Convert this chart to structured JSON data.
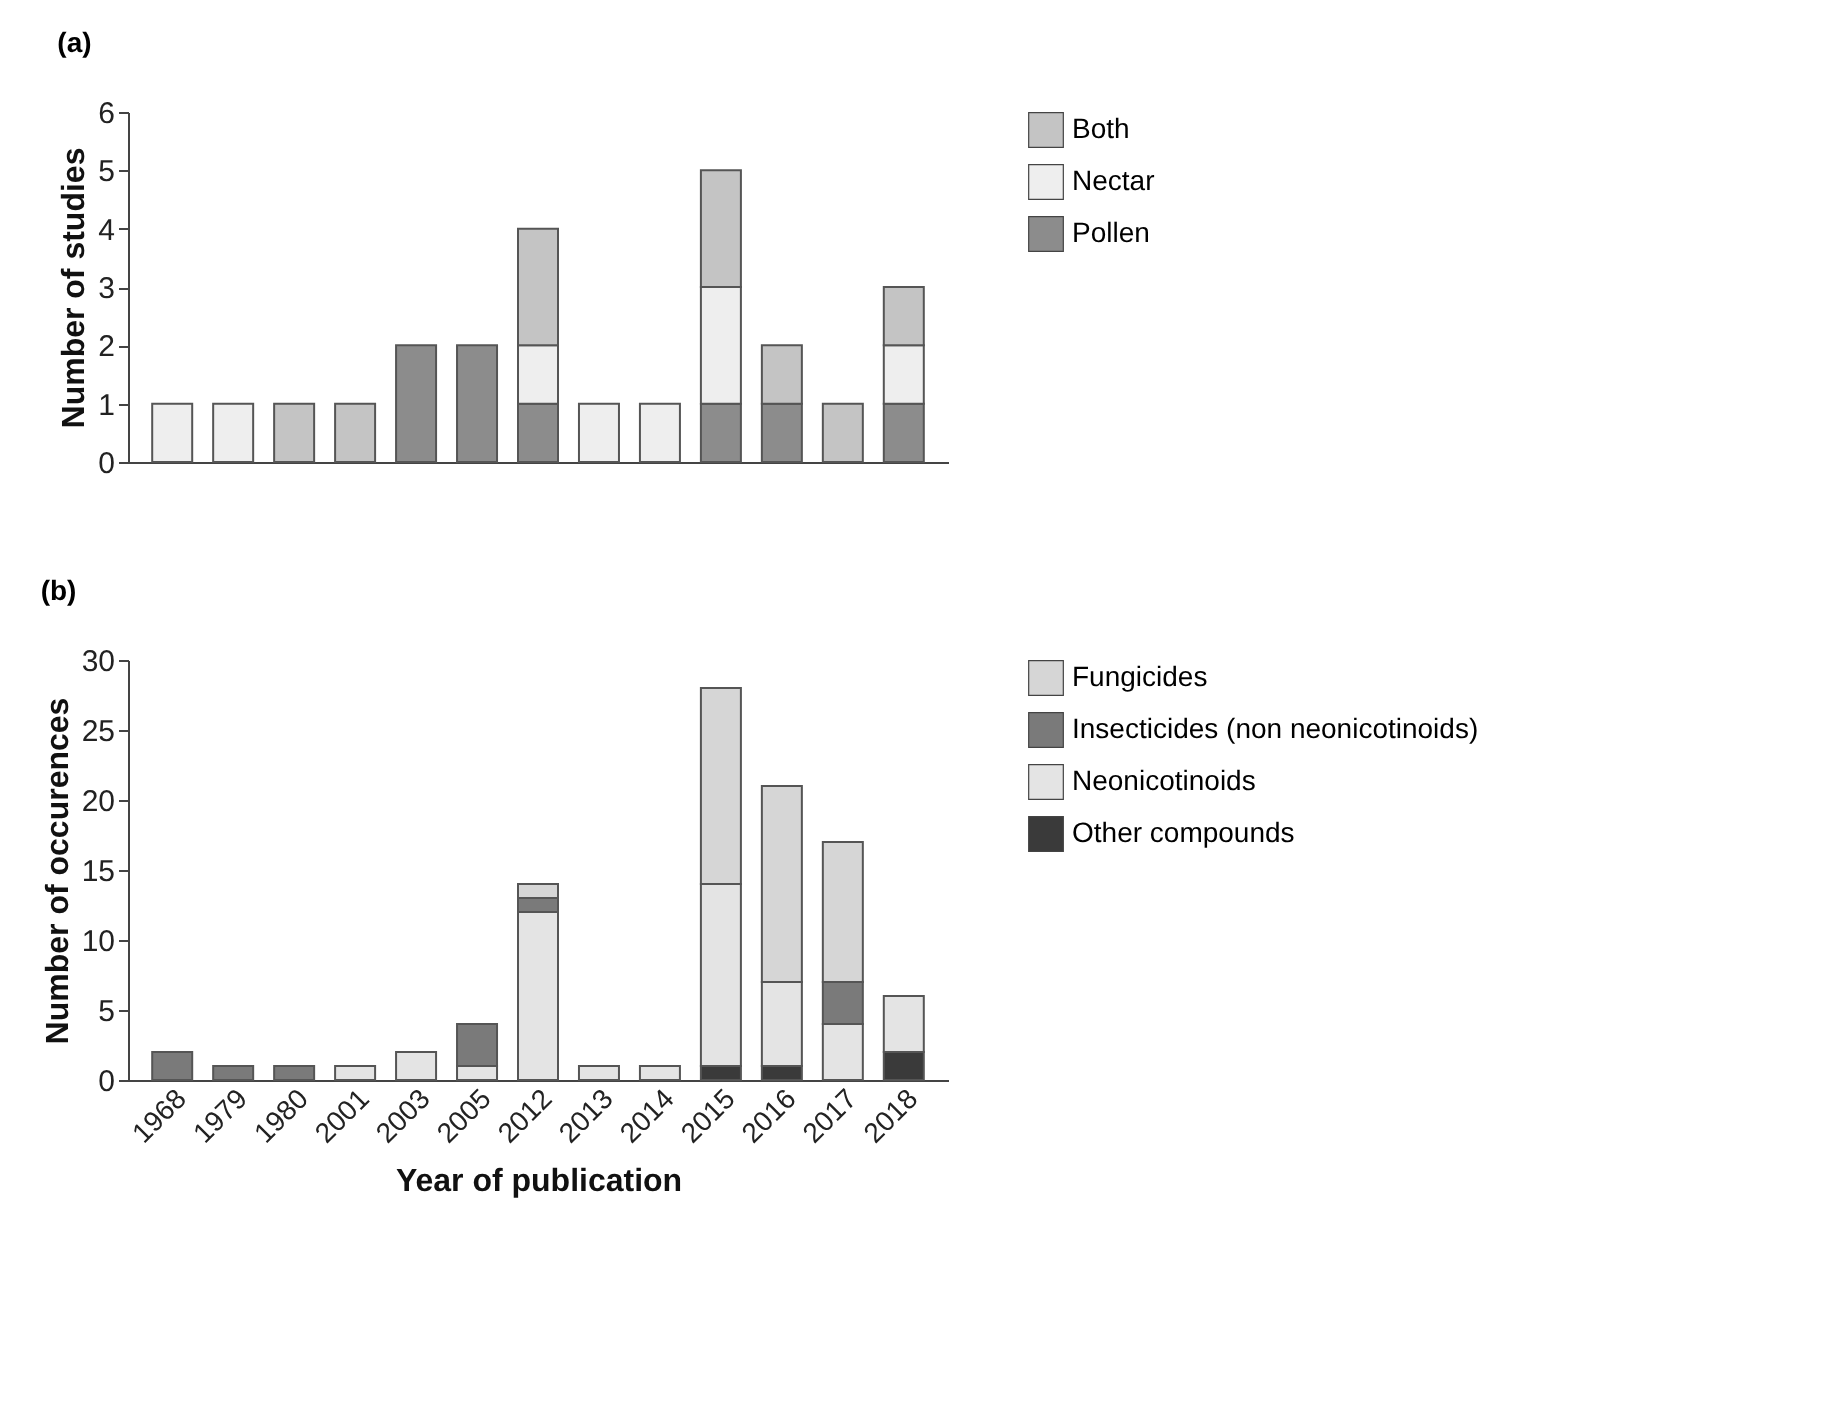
{
  "chart_data": [
    {
      "type": "bar",
      "title": "(a)",
      "ylabel": "Number of studies",
      "stacked": true,
      "legend": "right",
      "grid": false,
      "tick_labels": "y",
      "categories": [
        "1968",
        "1979",
        "1980",
        "2001",
        "2003",
        "2005",
        "2012",
        "2013",
        "2014",
        "2015",
        "2016",
        "2017",
        "2018"
      ],
      "ylim": [
        0,
        6
      ],
      "yticks": [
        0,
        1,
        2,
        3,
        4,
        5,
        6
      ],
      "series": [
        {
          "name": "Pollen",
          "color": "#8c8c8c",
          "values": [
            null,
            null,
            null,
            null,
            2,
            2,
            1,
            null,
            null,
            1,
            1,
            null,
            1
          ]
        },
        {
          "name": "Nectar",
          "color": "#eeeeee",
          "values": [
            1,
            1,
            null,
            null,
            null,
            null,
            1,
            1,
            1,
            2,
            null,
            null,
            1
          ]
        },
        {
          "name": "Both",
          "color": "#c4c4c4",
          "values": [
            null,
            null,
            1,
            1,
            null,
            null,
            2,
            null,
            null,
            2,
            1,
            1,
            1
          ]
        }
      ]
    },
    {
      "type": "bar",
      "title": "(b)",
      "xlabel": "Year of publication",
      "ylabel": "Number of occurences",
      "stacked": true,
      "legend": "right",
      "grid": false,
      "categories": [
        "1968",
        "1979",
        "1980",
        "2001",
        "2003",
        "2005",
        "2012",
        "2013",
        "2014",
        "2015",
        "2016",
        "2017",
        "2018"
      ],
      "ylim": [
        0,
        30
      ],
      "yticks": [
        0,
        5,
        10,
        15,
        20,
        25,
        30
      ],
      "series": [
        {
          "name": "Other compounds",
          "color": "#3a3a3a",
          "values": [
            null,
            null,
            null,
            null,
            null,
            null,
            null,
            null,
            null,
            1,
            1,
            null,
            2
          ]
        },
        {
          "name": "Neonicotinoids",
          "color": "#e4e4e4",
          "values": [
            null,
            null,
            null,
            1,
            2,
            1,
            12,
            1,
            1,
            13,
            6,
            4,
            4
          ]
        },
        {
          "name": "Insecticides (non neonicotinoids)",
          "color": "#7a7a7a",
          "values": [
            2,
            1,
            1,
            null,
            null,
            3,
            1,
            null,
            null,
            null,
            null,
            3,
            null
          ]
        },
        {
          "name": "Fungicides",
          "color": "#d6d6d6",
          "values": [
            null,
            null,
            null,
            null,
            null,
            null,
            1,
            null,
            null,
            14,
            14,
            10,
            null
          ]
        }
      ]
    }
  ]
}
